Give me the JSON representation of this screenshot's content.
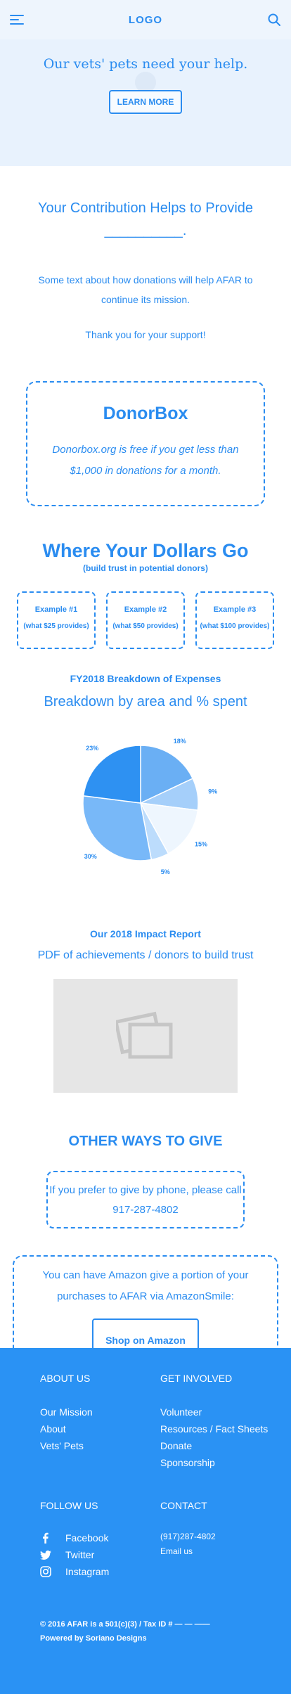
{
  "header": {
    "logo": "LOGO",
    "menu_icon": "hamburger-menu-icon",
    "search_icon": "search-icon"
  },
  "hero": {
    "title": "Our vets' pets need your help.",
    "button": "LEARN MORE"
  },
  "contribution": {
    "title": "Your Contribution Helps to Provide __________.",
    "text": "Some text about how donations will help AFAR to continue its mission.",
    "thanks": "Thank you for your support!"
  },
  "donorbox": {
    "title": "DonorBox",
    "text": "Donorbox.org is free if you get less than $1,000 in donations for a month."
  },
  "dollars": {
    "title": "Where Your Dollars Go",
    "subtitle": "(build trust in potential donors)",
    "examples": [
      {
        "title": "Example #1",
        "sub": "(what $25 provides)"
      },
      {
        "title": "Example #2",
        "sub": "(what $50 provides)"
      },
      {
        "title": "Example #3",
        "sub": "(what $100 provides)"
      }
    ]
  },
  "expenses": {
    "title": "FY2018 Breakdown of Expenses",
    "subtitle": "Breakdown by area and % spent"
  },
  "chart_data": {
    "type": "pie",
    "title": "Breakdown by area and % spent",
    "labels": [
      "18%",
      "9%",
      "15%",
      "5%",
      "30%",
      "23%"
    ],
    "values": [
      18,
      9,
      15,
      5,
      30,
      23
    ],
    "colors": [
      "#6aaff4",
      "#a5cffa",
      "#eef6fe",
      "#bcdcfc",
      "#78b8f8",
      "#2e91f2"
    ]
  },
  "impact": {
    "title": "Our 2018 Impact Report",
    "subtitle": "PDF of achievements / donors to build trust",
    "image_icon": "image-placeholder-icon"
  },
  "other_ways": {
    "title": "OTHER WAYS TO GIVE",
    "phone_text": "If you prefer to give by phone, please call 917-287-4802",
    "amazon_text": "You can have Amazon give a portion of your purchases to AFAR via AmazonSmile:",
    "amazon_button": "Shop on Amazon"
  },
  "footer": {
    "about": {
      "heading": "ABOUT US",
      "links": [
        "Our Mission",
        "About",
        "Vets' Pets"
      ]
    },
    "involved": {
      "heading": "GET INVOLVED",
      "links": [
        "Volunteer",
        "Resources / Fact Sheets",
        "Donate",
        "Sponsorship"
      ]
    },
    "follow": {
      "heading": "FOLLOW US",
      "links": [
        {
          "label": "Facebook",
          "icon": "facebook-icon"
        },
        {
          "label": "Twitter",
          "icon": "twitter-icon"
        },
        {
          "label": "Instagram",
          "icon": "instagram-icon"
        }
      ]
    },
    "contact": {
      "heading": "CONTACT",
      "phone": "(917)287-4802",
      "email": "Email us"
    },
    "copyright": "© 2016 AFAR is a 501(c)(3) / Tax ID # — — ——",
    "powered": "Powered by Soriano Designs"
  }
}
